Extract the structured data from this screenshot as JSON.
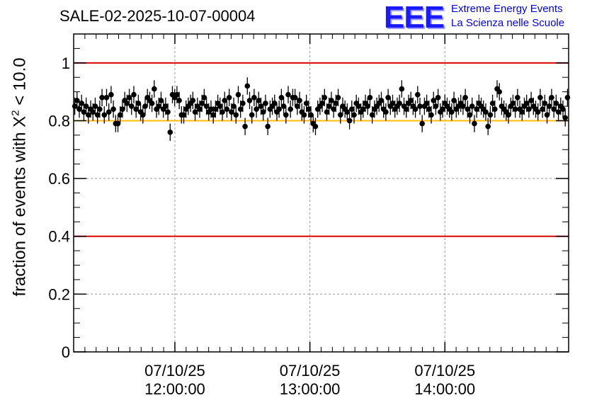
{
  "title": "SALE-02-2025-10-07-00004",
  "logo": {
    "mark": "EEE",
    "line1": "Extreme Energy Events",
    "line2": "La Scienza nelle Scuole"
  },
  "chart_data": {
    "type": "scatter",
    "title": "SALE-02-2025-10-07-00004",
    "ylabel_prefix": "fraction of events with X",
    "ylabel_sup": "2",
    "ylabel_suffix": " < 10.0",
    "ylabel": "fraction of events with X^2 < 10.0",
    "xlabel": "",
    "ylim": [
      0,
      1.1
    ],
    "xlim_minutes": [
      0,
      220
    ],
    "yticks": [
      "0",
      "0.2",
      "0.4",
      "0.6",
      "0.8",
      "1"
    ],
    "ytick_values": [
      0,
      0.2,
      0.4,
      0.6,
      0.8,
      1.0
    ],
    "xticks": [
      {
        "minute": 45,
        "date": "07/10/25",
        "time": "12:00:00"
      },
      {
        "minute": 105,
        "date": "07/10/25",
        "time": "13:00:00"
      },
      {
        "minute": 165,
        "date": "07/10/25",
        "time": "14:00:00"
      }
    ],
    "reference_lines": [
      {
        "y": 1.0,
        "color": "#dd0000"
      },
      {
        "y": 0.4,
        "color": "#dd0000"
      },
      {
        "y": 0.8,
        "color": "#ffbb00"
      }
    ],
    "error": 0.03,
    "series": [
      {
        "name": "fraction",
        "values": [
          0.85,
          0.87,
          0.84,
          0.86,
          0.83,
          0.85,
          0.82,
          0.84,
          0.83,
          0.85,
          0.82,
          0.84,
          0.88,
          0.82,
          0.88,
          0.83,
          0.89,
          0.84,
          0.79,
          0.79,
          0.82,
          0.84,
          0.87,
          0.86,
          0.88,
          0.85,
          0.89,
          0.84,
          0.86,
          0.83,
          0.82,
          0.85,
          0.88,
          0.87,
          0.86,
          0.91,
          0.84,
          0.85,
          0.87,
          0.84,
          0.85,
          0.83,
          0.76,
          0.89,
          0.88,
          0.89,
          0.87,
          0.82,
          0.82,
          0.84,
          0.85,
          0.86,
          0.87,
          0.83,
          0.85,
          0.84,
          0.86,
          0.88,
          0.85,
          0.83,
          0.84,
          0.82,
          0.84,
          0.86,
          0.85,
          0.83,
          0.87,
          0.84,
          0.88,
          0.83,
          0.85,
          0.82,
          0.89,
          0.84,
          0.86,
          0.78,
          0.92,
          0.87,
          0.82,
          0.88,
          0.84,
          0.87,
          0.85,
          0.83,
          0.86,
          0.78,
          0.84,
          0.85,
          0.86,
          0.83,
          0.84,
          0.88,
          0.85,
          0.82,
          0.89,
          0.84,
          0.88,
          0.88,
          0.85,
          0.87,
          0.83,
          0.82,
          0.86,
          0.84,
          0.82,
          0.79,
          0.78,
          0.84,
          0.85,
          0.86,
          0.88,
          0.83,
          0.85,
          0.87,
          0.84,
          0.86,
          0.88,
          0.82,
          0.85,
          0.84,
          0.83,
          0.8,
          0.84,
          0.82,
          0.86,
          0.85,
          0.83,
          0.84,
          0.86,
          0.85,
          0.88,
          0.82,
          0.84,
          0.85,
          0.86,
          0.87,
          0.84,
          0.83,
          0.88,
          0.85,
          0.86,
          0.84,
          0.85,
          0.86,
          0.91,
          0.85,
          0.84,
          0.86,
          0.87,
          0.85,
          0.84,
          0.89,
          0.85,
          0.79,
          0.85,
          0.86,
          0.84,
          0.82,
          0.87,
          0.85,
          0.88,
          0.83,
          0.84,
          0.86,
          0.85,
          0.84,
          0.83,
          0.87,
          0.84,
          0.85,
          0.86,
          0.85,
          0.88,
          0.84,
          0.82,
          0.85,
          0.79,
          0.84,
          0.86,
          0.85,
          0.84,
          0.83,
          0.78,
          0.82,
          0.86,
          0.84,
          0.91,
          0.9,
          0.85,
          0.84,
          0.83,
          0.82,
          0.85,
          0.86,
          0.84,
          0.88,
          0.84,
          0.83,
          0.85,
          0.86,
          0.84,
          0.87,
          0.85,
          0.84,
          0.83,
          0.88,
          0.84,
          0.86,
          0.82,
          0.85,
          0.88,
          0.84,
          0.86,
          0.83,
          0.85,
          0.84,
          0.81,
          0.88
        ]
      }
    ]
  }
}
